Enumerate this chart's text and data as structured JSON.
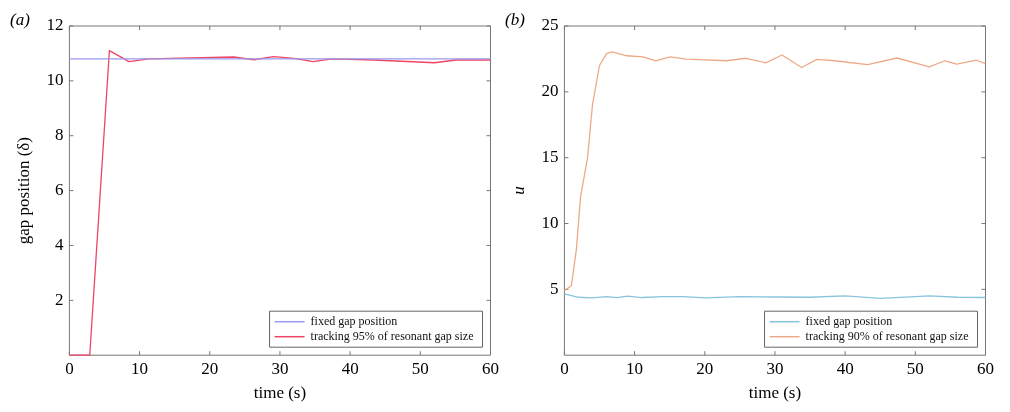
{
  "chart_data": [
    {
      "type": "line",
      "xlabel": "time (s)",
      "ylabel": "gap position (δ)",
      "annotations": [
        "(a)"
      ],
      "xlim": [
        0,
        60
      ],
      "xticks": [
        0,
        10,
        20,
        30,
        40,
        50,
        60
      ],
      "ylim": [
        0,
        12
      ],
      "yticks": [
        2,
        4,
        6,
        8,
        10,
        12
      ],
      "grid": false,
      "legend": "bottom right",
      "marker": "none",
      "line_style": "solid",
      "series": [
        {
          "name": "fixed gap position",
          "color": "#9999ee",
          "x": [
            0,
            60
          ],
          "values": [
            10.8,
            10.8
          ]
        },
        {
          "name": "tracking 95% of resonant gap size",
          "color": "#ee4466",
          "x": [
            0,
            2.9,
            5.7,
            8.5,
            11.3,
            23.4,
            26.3,
            29.1,
            32,
            34.7,
            37.4,
            43.4,
            52,
            55.1,
            60
          ],
          "values": [
            0,
            0,
            11.1,
            10.7,
            10.8,
            10.87,
            10.77,
            10.88,
            10.82,
            10.7,
            10.8,
            10.76,
            10.66,
            10.76,
            10.76
          ]
        }
      ]
    },
    {
      "type": "line",
      "xlabel": "time (s)",
      "ylabel": "u",
      "annotations": [
        "(b)"
      ],
      "xlim": [
        0,
        60
      ],
      "xticks": [
        0,
        10,
        20,
        30,
        40,
        50,
        60
      ],
      "ylim": [
        0,
        25
      ],
      "yticks": [
        5,
        10,
        15,
        20,
        25
      ],
      "grid": false,
      "legend": "bottom right",
      "marker": "none",
      "line_style": "solid",
      "series": [
        {
          "name": "fixed gap position",
          "color": "#88c4dc",
          "x": [
            0,
            2,
            4,
            6,
            7.5,
            9,
            11,
            14,
            17,
            20,
            25,
            30,
            35,
            40,
            45,
            50,
            52,
            56,
            60
          ],
          "values": [
            4.65,
            4.4,
            4.35,
            4.45,
            4.38,
            4.48,
            4.38,
            4.45,
            4.45,
            4.35,
            4.45,
            4.42,
            4.4,
            4.5,
            4.32,
            4.45,
            4.5,
            4.4,
            4.38
          ]
        },
        {
          "name": "tracking 90% of resonant gap size",
          "color": "#eeaa88",
          "x": [
            0,
            1,
            1.7,
            2.3,
            3.3,
            4,
            5,
            6,
            6.8,
            8.9,
            11.2,
            13,
            15.1,
            17.4,
            23.1,
            25.9,
            28.7,
            31,
            33.8,
            36,
            38.5,
            43.2,
            47.4,
            52,
            54.2,
            55.9,
            58.7,
            60
          ],
          "values": [
            4.9,
            5.3,
            8,
            12,
            15,
            19,
            22,
            22.9,
            23.04,
            22.74,
            22.66,
            22.36,
            22.66,
            22.49,
            22.36,
            22.55,
            22.2,
            22.8,
            21.85,
            22.47,
            22.36,
            22.07,
            22.57,
            21.9,
            22.36,
            22.1,
            22.4,
            22.15
          ]
        }
      ]
    }
  ]
}
